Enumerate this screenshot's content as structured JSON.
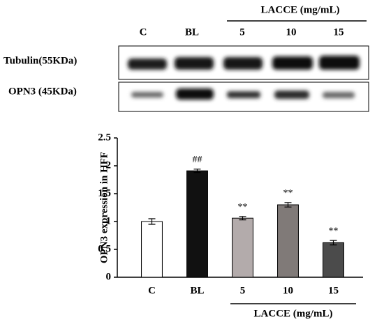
{
  "blot": {
    "group_label": "LACCE (mg/mL)",
    "lanes": [
      "C",
      "BL",
      "5",
      "10",
      "15"
    ],
    "rows": [
      "Tubulin(55KDa)",
      "OPN3 (45KDa)"
    ]
  },
  "chart_data": {
    "type": "bar",
    "y_label": "OPN3 expression in HFF",
    "categories": [
      "C",
      "BL",
      "5",
      "10",
      "15"
    ],
    "values": [
      1.0,
      1.91,
      1.06,
      1.3,
      0.62
    ],
    "errors": [
      0.05,
      0.03,
      0.03,
      0.04,
      0.04
    ],
    "annotations": [
      null,
      "##",
      "**",
      "**",
      "**"
    ],
    "colors": [
      "#ffffff",
      "#111111",
      "#b3abab",
      "#807a78",
      "#4b4b4b"
    ],
    "group_label": "LACCE (mg/mL)",
    "ylim": [
      0,
      2.5
    ],
    "yticks": [
      0,
      0.5,
      1,
      1.5,
      2,
      2.5
    ]
  }
}
